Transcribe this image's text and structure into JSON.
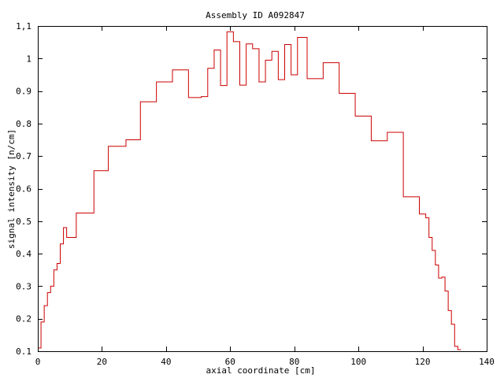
{
  "chart_data": {
    "type": "line",
    "step": true,
    "title": "Assembly ID A092847",
    "xlabel": "axial coordinate [cm]",
    "ylabel": "signal intensity [n/cm]",
    "xlim": [
      0,
      140
    ],
    "ylim": [
      0.1,
      1.1
    ],
    "grid": false,
    "legend": "none",
    "line_color": "#cc0000",
    "xticks": [
      0,
      20,
      40,
      60,
      80,
      100,
      120,
      140
    ],
    "yticks": [
      0.1,
      0.2,
      0.3,
      0.4,
      0.5,
      0.6,
      0.7,
      0.8,
      0.9,
      1,
      1.1
    ],
    "ytick_labels": [
      "0.1",
      "0.2",
      "0.3",
      "0.4",
      "0.5",
      "0.6",
      "0.7",
      "0.8",
      "0.9",
      "1",
      "1,1"
    ],
    "series": [
      {
        "x": [
          0,
          1,
          2,
          3,
          4,
          5,
          6,
          7,
          8,
          9,
          12,
          17.5,
          22,
          27.5,
          32,
          37,
          42,
          47,
          51,
          53,
          55,
          57,
          59,
          61,
          63,
          65,
          67,
          69,
          71,
          73,
          75,
          77,
          79,
          81,
          84,
          89,
          94,
          99,
          104,
          109,
          114,
          119,
          121,
          122,
          123,
          124,
          125,
          126,
          127,
          128,
          129,
          130,
          131,
          132
        ],
        "y": [
          0.11,
          0.19,
          0.24,
          0.28,
          0.3,
          0.35,
          0.37,
          0.43,
          0.48,
          0.45,
          0.525,
          0.655,
          0.73,
          0.75,
          0.867,
          0.928,
          0.965,
          0.88,
          0.883,
          0.97,
          1.026,
          0.917,
          1.082,
          1.052,
          0.918,
          1.045,
          1.03,
          0.928,
          0.995,
          1.022,
          0.935,
          1.043,
          0.95,
          1.065,
          0.938,
          0.987,
          0.893,
          0.823,
          0.747,
          0.773,
          0.575,
          0.522,
          0.51,
          0.45,
          0.41,
          0.365,
          0.325,
          0.328,
          0.285,
          0.225,
          0.183,
          0.115,
          0.105,
          0.105
        ]
      }
    ]
  }
}
